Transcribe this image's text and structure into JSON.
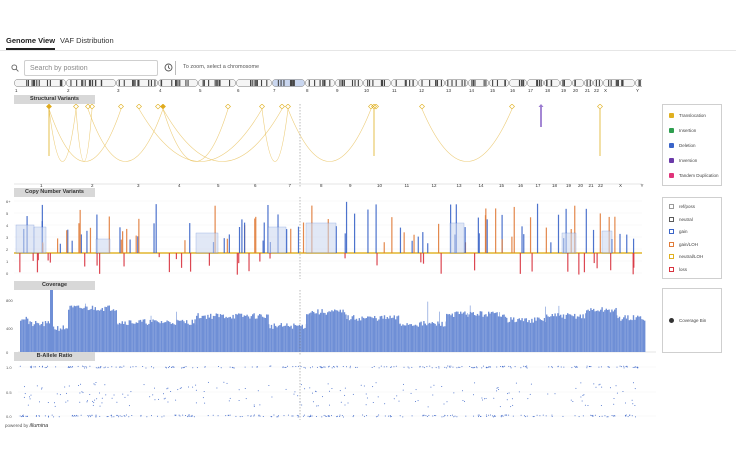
{
  "tabs": [
    {
      "label": "Genome View",
      "active": true
    },
    {
      "label": "VAF Distribution",
      "active": false
    }
  ],
  "search": {
    "placeholder": "Search by position",
    "hint": "To zoom, select a chromosome"
  },
  "chromosomes": [
    "1",
    "2",
    "3",
    "4",
    "5",
    "6",
    "7",
    "8",
    "9",
    "10",
    "11",
    "12",
    "13",
    "14",
    "15",
    "16",
    "17",
    "18",
    "19",
    "20",
    "21",
    "22",
    "X",
    "Y"
  ],
  "sections": {
    "structural": "Structural Variants",
    "cnv": "Copy Number Variants",
    "coverage": "Coverage",
    "baf": "B-Allele Ratio"
  },
  "sv_legend": [
    {
      "label": "Translocation",
      "color": "#e0b020",
      "icon": "trophy-icon"
    },
    {
      "label": "Insertion",
      "color": "#2e9e4f",
      "icon": "funnel-icon"
    },
    {
      "label": "Deletion",
      "color": "#3a64c8",
      "icon": "funnel-icon"
    },
    {
      "label": "Inversion",
      "color": "#6a3aa8",
      "icon": "arrow-up-icon"
    },
    {
      "label": "Tandem Duplication",
      "color": "#e0337a",
      "icon": "pin-icon"
    }
  ],
  "cnv_legend": [
    {
      "label": "ref/poss",
      "color": "#9a9a9a"
    },
    {
      "label": "neutral",
      "color": "#5a5a5a"
    },
    {
      "label": "gain",
      "color": "#3a64c8"
    },
    {
      "label": "gain/LOH",
      "color": "#e07b39"
    },
    {
      "label": "neutral/LOH",
      "color": "#e0b020"
    },
    {
      "label": "loss",
      "color": "#d8333f"
    }
  ],
  "coverage_legend": {
    "label": "Coverage Bin",
    "color": "#333333"
  },
  "cnv_axis": [
    "6+",
    "5",
    "4",
    "3",
    "2",
    "1",
    "0"
  ],
  "coverage_axis": [
    "800",
    "400",
    "0"
  ],
  "baf_axis": [
    "1.0",
    "0.5",
    "0.0"
  ],
  "colors": {
    "gain": "#3a64c8",
    "gainloh": "#e07b39",
    "loss": "#d8333f",
    "neutralloh": "#e0b020",
    "coverage": "#6f8fd6",
    "sv": "#e8c15a"
  },
  "footer": {
    "prefix": "powered by",
    "brand": "illumina"
  }
}
